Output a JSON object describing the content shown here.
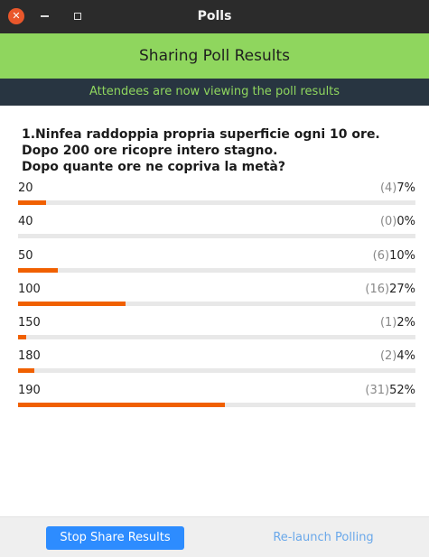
{
  "window": {
    "title": "Polls",
    "close_glyph": "✕"
  },
  "banner": {
    "title": "Sharing Poll Results"
  },
  "notice": {
    "text": "Attendees are now viewing the poll results"
  },
  "question": {
    "lines": [
      "1.Ninfea raddoppia propria superficie ogni 10 ore.",
      "Dopo 200 ore ricopre intero stagno.",
      "Dopo quante ore ne copriva la metà?"
    ]
  },
  "options": [
    {
      "label": "20",
      "count": "(4)",
      "percent": "7%",
      "fraction": 0.07
    },
    {
      "label": "40",
      "count": "(0)",
      "percent": "0%",
      "fraction": 0.0
    },
    {
      "label": "50",
      "count": "(6)",
      "percent": "10%",
      "fraction": 0.1
    },
    {
      "label": "100",
      "count": "(16)",
      "percent": "27%",
      "fraction": 0.27
    },
    {
      "label": "150",
      "count": "(1)",
      "percent": "2%",
      "fraction": 0.02
    },
    {
      "label": "180",
      "count": "(2)",
      "percent": "4%",
      "fraction": 0.04
    },
    {
      "label": "190",
      "count": "(31)",
      "percent": "52%",
      "fraction": 0.52
    }
  ],
  "footer": {
    "stop_label": "Stop Share Results",
    "relaunch_label": "Re-launch Polling"
  },
  "colors": {
    "banner": "#8fd65e",
    "notice_bg": "#283541",
    "bar_fill": "#f06000",
    "primary_button": "#2d8cff"
  }
}
